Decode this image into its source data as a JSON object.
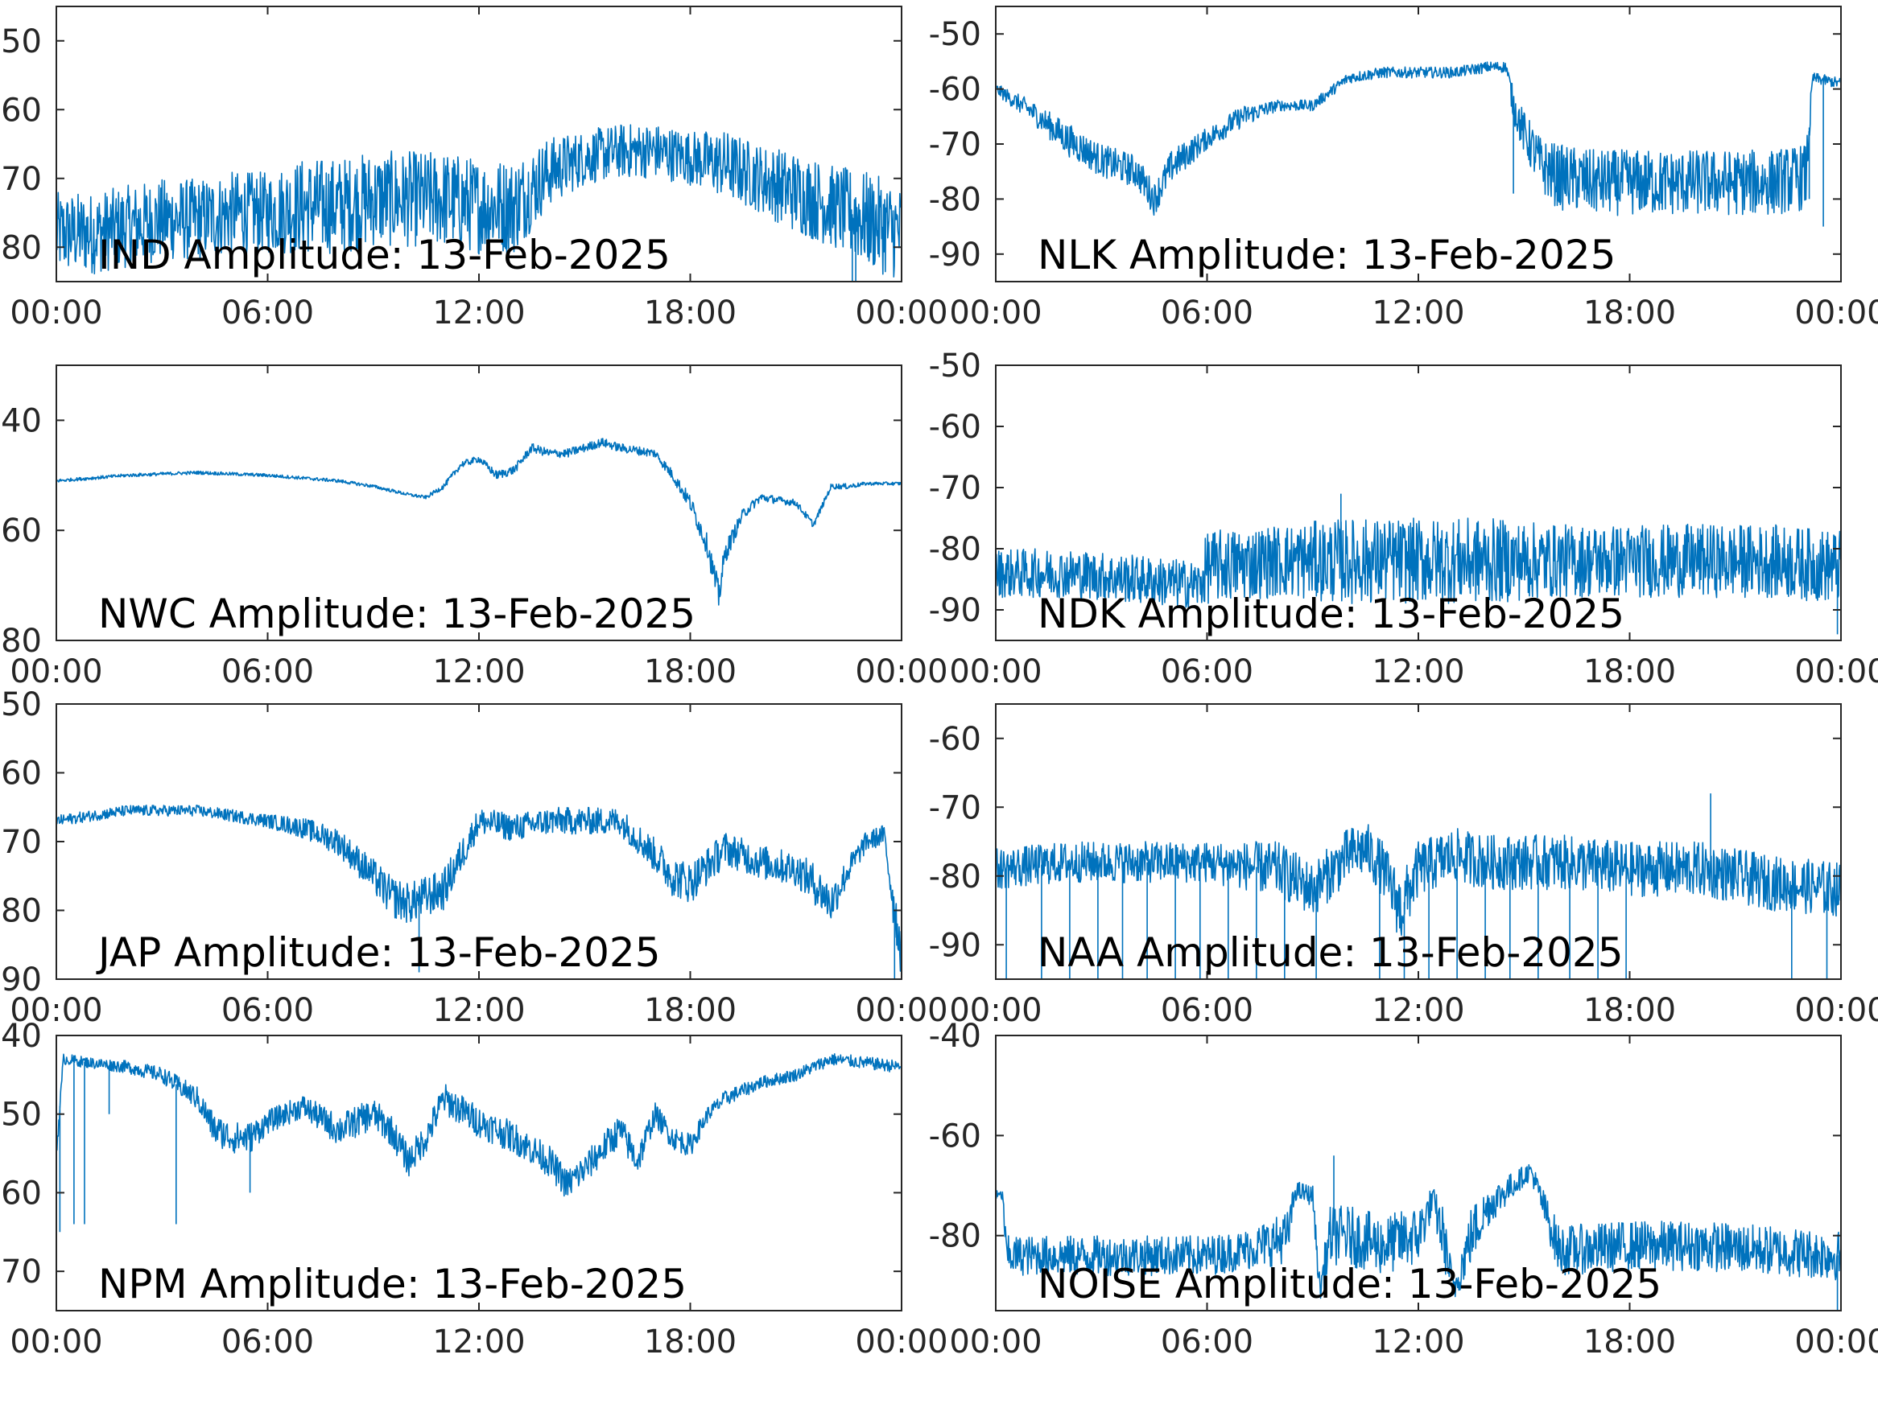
{
  "chart_data": [
    {
      "type": "line",
      "title": "IND Amplitude: 13-Feb-2025",
      "xticks": [
        "00:00",
        "06:00",
        "12:00",
        "18:00",
        "00:00"
      ],
      "ylim": [
        -85,
        -45
      ],
      "yticks": [
        -50,
        -60,
        -70,
        -80
      ],
      "ytick_labels": [
        "50",
        "60",
        "70",
        "80"
      ],
      "series": [
        {
          "color": "#0072BD",
          "x": [
            0,
            1,
            2,
            3,
            4,
            5,
            6,
            7,
            8,
            9,
            10,
            11,
            12,
            13,
            14,
            15,
            16,
            17,
            18,
            19,
            20,
            21,
            22,
            23,
            24
          ],
          "y": [
            -78,
            -78,
            -77,
            -76,
            -76,
            -75,
            -75,
            -74,
            -74,
            -73,
            -73,
            -73,
            -74,
            -74,
            -69,
            -67,
            -66,
            -66,
            -67,
            -68,
            -70,
            -72,
            -74,
            -76,
            -78
          ],
          "noise": [
            6,
            6,
            6,
            6,
            6,
            6,
            6,
            7,
            7,
            7,
            7,
            7,
            7,
            7,
            5,
            4,
            4,
            4,
            4,
            5,
            5,
            6,
            6,
            7,
            7
          ],
          "spikes": [
            {
              "x": 22.6,
              "y": -85
            },
            {
              "x": 22.7,
              "y": -85
            }
          ]
        }
      ]
    },
    {
      "type": "line",
      "title": "NLK Amplitude: 13-Feb-2025",
      "xticks": [
        "00:00",
        "06:00",
        "12:00",
        "18:00",
        "00:00"
      ],
      "ylim": [
        -95,
        -45
      ],
      "yticks": [
        -50,
        -60,
        -70,
        -80,
        -90
      ],
      "ytick_labels": [
        "-50",
        "-60",
        "-70",
        "-80",
        "-90"
      ],
      "series": [
        {
          "color": "#0072BD",
          "x": [
            0,
            1,
            2,
            3,
            4,
            4.5,
            5,
            6,
            7,
            8,
            9,
            10,
            11,
            12,
            13,
            14,
            14.5,
            14.7,
            15,
            15.5,
            16,
            17,
            18,
            19,
            20,
            21,
            22,
            23,
            23.2,
            24
          ],
          "y": [
            -60,
            -64,
            -69,
            -73,
            -75,
            -80,
            -74,
            -69,
            -65,
            -63,
            -63,
            -58,
            -57,
            -57,
            -57,
            -56,
            -56,
            -63,
            -68,
            -74,
            -76,
            -77,
            -77,
            -77,
            -77,
            -77,
            -77,
            -76,
            -58,
            -59
          ],
          "noise": [
            1,
            2,
            3,
            3,
            3,
            3,
            3,
            2,
            2,
            1,
            1,
            1,
            1,
            1,
            1,
            1,
            1,
            3,
            4,
            5,
            6,
            6,
            6,
            6,
            6,
            6,
            6,
            6,
            1,
            1
          ],
          "spikes": [
            {
              "x": 14.7,
              "y": -79
            },
            {
              "x": 23.5,
              "y": -85
            },
            {
              "x": 23.1,
              "y": -80
            }
          ]
        }
      ]
    },
    {
      "type": "line",
      "title": "NWC Amplitude: 13-Feb-2025",
      "xticks": [
        "00:00",
        "06:00",
        "12:00",
        "18:00",
        "00:00"
      ],
      "ylim": [
        -80,
        -30
      ],
      "yticks": [
        -40,
        -60,
        -80
      ],
      "ytick_labels": [
        "40",
        "60",
        "80"
      ],
      "series": [
        {
          "color": "#0072BD",
          "x": [
            0,
            2,
            4,
            6,
            8,
            9,
            10,
            10.5,
            11,
            11.5,
            12,
            12.5,
            13,
            13.5,
            14,
            14.5,
            15,
            15.5,
            16,
            17,
            17.5,
            18,
            18.5,
            18.8,
            19,
            19.5,
            20,
            21,
            21.5,
            22,
            22.5,
            23,
            24
          ],
          "y": [
            -51,
            -50,
            -49.5,
            -50,
            -51,
            -52,
            -53.5,
            -54,
            -52,
            -48,
            -47,
            -50,
            -49,
            -45,
            -46,
            -46,
            -45,
            -44,
            -45,
            -46,
            -50,
            -55,
            -63,
            -72,
            -64,
            -57,
            -54,
            -55,
            -59,
            -52,
            -52,
            -51.5,
            -51.5
          ],
          "noise": [
            0.3,
            0.3,
            0.3,
            0.3,
            0.3,
            0.3,
            0.3,
            0.3,
            0.5,
            0.6,
            0.6,
            0.8,
            0.8,
            0.8,
            0.8,
            0.8,
            0.8,
            0.8,
            0.8,
            0.8,
            1,
            1.5,
            2,
            3,
            2,
            1,
            0.8,
            0.6,
            0.6,
            0.5,
            0.5,
            0.3,
            0.3
          ],
          "spikes": []
        }
      ]
    },
    {
      "type": "line",
      "title": "NDK Amplitude: 13-Feb-2025",
      "xticks": [
        "00:00",
        "06:00",
        "12:00",
        "18:00",
        "00:00"
      ],
      "ylim": [
        -95,
        -50
      ],
      "yticks": [
        -50,
        -60,
        -70,
        -80,
        -90
      ],
      "ytick_labels": [
        "-50",
        "-60",
        "-70",
        "-80",
        "-90"
      ],
      "series": [
        {
          "color": "#0072BD",
          "x": [
            0,
            2,
            4,
            5.8,
            6,
            8,
            10,
            12,
            14,
            16,
            18,
            20,
            22,
            24
          ],
          "y": [
            -84,
            -84,
            -85,
            -86,
            -83,
            -82,
            -82,
            -82,
            -82,
            -82,
            -82,
            -82,
            -82,
            -83
          ],
          "noise": [
            4,
            4,
            4,
            4,
            6,
            6,
            7,
            7,
            7,
            6,
            6,
            6,
            6,
            6
          ],
          "spikes": [
            {
              "x": 9.8,
              "y": -71
            },
            {
              "x": 23.9,
              "y": -94
            }
          ]
        }
      ]
    },
    {
      "type": "line",
      "title": "JAP Amplitude: 13-Feb-2025",
      "xticks": [
        "00:00",
        "06:00",
        "12:00",
        "18:00",
        "00:00"
      ],
      "ylim": [
        -90,
        -50
      ],
      "yticks": [
        -50,
        -60,
        -70,
        -80,
        -90
      ],
      "ytick_labels": [
        "50",
        "60",
        "70",
        "80",
        "90"
      ],
      "series": [
        {
          "color": "#0072BD",
          "x": [
            0,
            2,
            4,
            6,
            7,
            8,
            9,
            9.5,
            10,
            10.5,
            11,
            11.5,
            12,
            13,
            14,
            15,
            16,
            17,
            17.5,
            18,
            19,
            20,
            21,
            21.5,
            22,
            22.5,
            23,
            23.5,
            23.8,
            24
          ],
          "y": [
            -67,
            -65.5,
            -65.5,
            -67,
            -68,
            -70,
            -75,
            -78,
            -79,
            -78,
            -77,
            -72,
            -67,
            -68,
            -67,
            -67,
            -67,
            -72,
            -75,
            -76,
            -71,
            -73,
            -74,
            -76,
            -79,
            -74,
            -70,
            -69,
            -80,
            -86
          ],
          "noise": [
            0.8,
            0.8,
            0.8,
            1,
            1.5,
            2,
            2.5,
            3,
            3,
            3,
            3,
            2.5,
            2,
            2,
            2,
            2,
            2,
            2.5,
            3,
            3,
            2.5,
            2.5,
            2.5,
            3,
            3,
            2,
            1.5,
            1.5,
            4,
            4
          ],
          "spikes": [
            {
              "x": 10.3,
              "y": -89
            },
            {
              "x": 23.8,
              "y": -90
            }
          ]
        }
      ]
    },
    {
      "type": "line",
      "title": "NAA Amplitude: 13-Feb-2025",
      "xticks": [
        "00:00",
        "06:00",
        "12:00",
        "18:00",
        "00:00"
      ],
      "ylim": [
        -95,
        -55
      ],
      "yticks": [
        -60,
        -70,
        -80,
        -90
      ],
      "ytick_labels": [
        "-60",
        "-70",
        "-80",
        "-90"
      ],
      "series": [
        {
          "color": "#0072BD",
          "x": [
            0,
            2,
            4,
            6,
            8,
            9,
            10,
            10.5,
            11,
            11.5,
            12,
            13,
            14,
            15,
            16,
            18,
            20,
            22,
            24
          ],
          "y": [
            -79,
            -78,
            -78,
            -78,
            -79,
            -82,
            -77,
            -76,
            -79,
            -85,
            -79,
            -77,
            -78,
            -78,
            -78,
            -79,
            -79,
            -81,
            -82
          ],
          "noise": [
            3,
            3,
            3,
            3,
            4,
            4,
            4,
            4,
            4,
            5,
            4,
            4,
            4,
            4,
            4,
            4,
            4,
            4,
            4
          ],
          "spikes": [
            {
              "x": 0.3,
              "y": -95
            },
            {
              "x": 1.3,
              "y": -95
            },
            {
              "x": 2.1,
              "y": -95
            },
            {
              "x": 2.9,
              "y": -95
            },
            {
              "x": 3.6,
              "y": -95
            },
            {
              "x": 4.3,
              "y": -95
            },
            {
              "x": 5.1,
              "y": -95
            },
            {
              "x": 5.8,
              "y": -95
            },
            {
              "x": 6.6,
              "y": -95
            },
            {
              "x": 7.4,
              "y": -95
            },
            {
              "x": 8.2,
              "y": -95
            },
            {
              "x": 9.1,
              "y": -95
            },
            {
              "x": 10.9,
              "y": -95
            },
            {
              "x": 11.6,
              "y": -95
            },
            {
              "x": 12.3,
              "y": -95
            },
            {
              "x": 13.1,
              "y": -95
            },
            {
              "x": 13.9,
              "y": -95
            },
            {
              "x": 14.6,
              "y": -95
            },
            {
              "x": 15.4,
              "y": -95
            },
            {
              "x": 16.3,
              "y": -95
            },
            {
              "x": 17.1,
              "y": -95
            },
            {
              "x": 17.9,
              "y": -95
            },
            {
              "x": 22.6,
              "y": -95
            },
            {
              "x": 23.6,
              "y": -95
            },
            {
              "x": 20.3,
              "y": -68
            }
          ]
        }
      ]
    },
    {
      "type": "line",
      "title": "NPM Amplitude: 13-Feb-2025",
      "xticks": [
        "00:00",
        "06:00",
        "12:00",
        "18:00",
        "00:00"
      ],
      "ylim": [
        -75,
        -40
      ],
      "yticks": [
        -40,
        -50,
        -60,
        -70
      ],
      "ytick_labels": [
        "40",
        "50",
        "60",
        "70"
      ],
      "series": [
        {
          "color": "#0072BD",
          "x": [
            0,
            0.2,
            1,
            2,
            3,
            4,
            4.5,
            5,
            5.5,
            6,
            7,
            8,
            9,
            9.5,
            10,
            10.5,
            11,
            12,
            13,
            14,
            14.5,
            15,
            16,
            16.5,
            17,
            17.5,
            18,
            18.5,
            19,
            20,
            21,
            22,
            23,
            24
          ],
          "y": [
            -55,
            -43,
            -43.5,
            -44,
            -45,
            -48,
            -52,
            -53,
            -53,
            -51,
            -49,
            -52,
            -50,
            -52,
            -56,
            -53,
            -48,
            -51,
            -53,
            -56,
            -59,
            -57,
            -52,
            -56,
            -50,
            -53,
            -54,
            -50,
            -48,
            -46,
            -45,
            -43,
            -43.5,
            -44
          ],
          "noise": [
            1,
            0.7,
            0.7,
            0.8,
            1,
            1.5,
            2,
            2,
            2,
            1.5,
            1.5,
            2,
            2,
            2,
            2,
            2,
            2,
            2,
            2,
            2,
            2,
            2,
            2,
            2,
            1.5,
            1.5,
            1.5,
            1,
            1,
            0.8,
            0.8,
            0.8,
            0.8,
            0.8
          ],
          "spikes": [
            {
              "x": 0.1,
              "y": -65
            },
            {
              "x": 0.5,
              "y": -64
            },
            {
              "x": 0.8,
              "y": -64
            },
            {
              "x": 1.5,
              "y": -50
            },
            {
              "x": 3.4,
              "y": -64
            },
            {
              "x": 5.5,
              "y": -60
            }
          ]
        }
      ]
    },
    {
      "type": "line",
      "title": "NOISE Amplitude: 13-Feb-2025",
      "xticks": [
        "00:00",
        "06:00",
        "12:00",
        "18:00",
        "00:00"
      ],
      "ylim": [
        -95,
        -40
      ],
      "yticks": [
        -40,
        -60,
        -80
      ],
      "ytick_labels": [
        "-40",
        "-60",
        "-80"
      ],
      "series": [
        {
          "color": "#0072BD",
          "x": [
            0,
            0.2,
            0.3,
            2,
            4,
            6,
            7,
            8,
            8.3,
            8.5,
            9,
            9.2,
            9.5,
            10,
            11,
            12,
            12.4,
            12.7,
            13,
            13.5,
            14,
            14.5,
            15,
            15.2,
            16,
            18,
            20,
            22,
            24
          ],
          "y": [
            -72,
            -72,
            -84,
            -84,
            -84,
            -84,
            -83,
            -81,
            -80,
            -71,
            -72,
            -91,
            -80,
            -80,
            -82,
            -80,
            -73,
            -80,
            -91,
            -80,
            -74,
            -71,
            -68,
            -67,
            -83,
            -82,
            -82,
            -83,
            -84
          ],
          "noise": [
            1,
            1,
            4,
            4,
            4,
            4,
            4,
            5,
            5,
            2,
            2,
            3,
            6,
            6,
            6,
            6,
            3,
            6,
            3,
            6,
            4,
            3,
            2,
            2,
            5,
            5,
            5,
            5,
            5
          ],
          "spikes": [
            {
              "x": 9.6,
              "y": -64
            },
            {
              "x": 23.9,
              "y": -95
            }
          ]
        }
      ]
    }
  ]
}
